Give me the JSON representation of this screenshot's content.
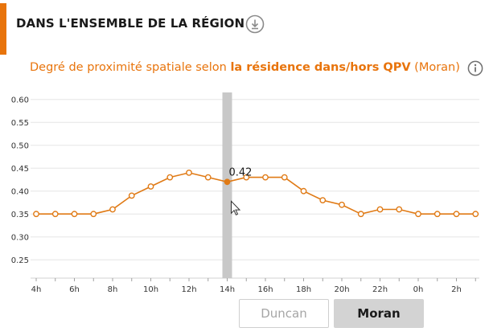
{
  "colors": {
    "accent": "#e8740c",
    "line": "#e07a15",
    "highlight_band": "#c8c8c8",
    "grid": "#e6e6e6"
  },
  "header": {
    "title": "DANS L'ENSEMBLE DE LA RÉGION",
    "download_icon": "download-icon"
  },
  "subtitle": {
    "prefix": "Degré de proximité spatiale selon ",
    "bold": "la résidence dans/hors QPV",
    "suffix": " (Moran)",
    "info_icon": "info-icon"
  },
  "buttons": {
    "duncan": "Duncan",
    "moran": "Moran",
    "selected": "Moran"
  },
  "chart_data": {
    "type": "line",
    "x": [
      "4h",
      "5h",
      "6h",
      "7h",
      "8h",
      "9h",
      "10h",
      "11h",
      "12h",
      "13h",
      "14h",
      "15h",
      "16h",
      "17h",
      "18h",
      "19h",
      "20h",
      "21h",
      "22h",
      "23h",
      "0h",
      "1h",
      "2h",
      "3h"
    ],
    "x_tick_labels": [
      "4h",
      "6h",
      "8h",
      "10h",
      "12h",
      "14h",
      "16h",
      "18h",
      "20h",
      "22h",
      "0h",
      "2h"
    ],
    "series": [
      {
        "values": [
          0.35,
          0.35,
          0.35,
          0.35,
          0.36,
          0.39,
          0.41,
          0.43,
          0.44,
          0.43,
          0.42,
          0.43,
          0.43,
          0.43,
          0.4,
          0.38,
          0.37,
          0.35,
          0.36,
          0.36,
          0.35,
          0.35,
          0.35,
          0.35
        ]
      }
    ],
    "ylim": [
      0.21,
      0.61
    ],
    "y_ticks": [
      0.25,
      0.3,
      0.35,
      0.4,
      0.45,
      0.5,
      0.55,
      0.6
    ],
    "grid": true,
    "highlight": {
      "x": "14h",
      "value": "0.42"
    }
  }
}
